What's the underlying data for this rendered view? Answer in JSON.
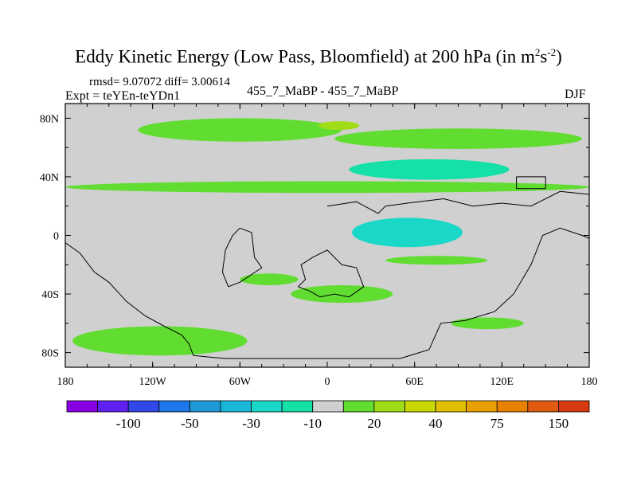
{
  "chart_data": {
    "type": "heatmap",
    "title_prefix": "Eddy Kinetic Energy (Low Pass, Bloomfield) at 200 hPa (in m",
    "title_unit_exp1": "2",
    "title_unit_mid": "s",
    "title_unit_exp2": "-2",
    "title_suffix": ")",
    "stats_line": "rmsd= 9.07072 diff= 3.00614",
    "expt_line": "Expt = teYEn-teYDn1",
    "center_label": "455_7_MaBP - 455_7_MaBP",
    "season": "DJF",
    "x_range": [
      -180,
      180
    ],
    "y_range": [
      -90,
      90
    ],
    "x_ticks": [
      {
        "value": -180,
        "label": "180"
      },
      {
        "value": -120,
        "label": "120W"
      },
      {
        "value": -60,
        "label": "60W"
      },
      {
        "value": 0,
        "label": "0"
      },
      {
        "value": 60,
        "label": "60E"
      },
      {
        "value": 120,
        "label": "120E"
      },
      {
        "value": 180,
        "label": "180"
      }
    ],
    "y_ticks": [
      {
        "value": 80,
        "label": "80N"
      },
      {
        "value": 40,
        "label": "40N"
      },
      {
        "value": 0,
        "label": "0"
      },
      {
        "value": -40,
        "label": "40S"
      },
      {
        "value": -80,
        "label": "80S"
      }
    ],
    "colorbar": {
      "colors": [
        "#8a00e6",
        "#6020f0",
        "#2f48e6",
        "#1e78ec",
        "#1e9ad6",
        "#1ab8d8",
        "#19d8c8",
        "#14e0a8",
        "#d0d0d0",
        "#60dd30",
        "#a0dc18",
        "#c8d800",
        "#e0c000",
        "#e8a000",
        "#e88000",
        "#e05a10",
        "#d83a10"
      ],
      "labels": [
        {
          "boundary": 1,
          "text": "-100"
        },
        {
          "boundary": 3,
          "text": "-50"
        },
        {
          "boundary": 5,
          "text": "-30"
        },
        {
          "boundary": 7,
          "text": "-10"
        },
        {
          "boundary": 9,
          "text": "20"
        },
        {
          "boundary": 11,
          "text": "40"
        },
        {
          "boundary": 13,
          "text": "75"
        },
        {
          "boundary": 15,
          "text": "150"
        }
      ]
    },
    "regions": [
      {
        "level": "20",
        "color": "#60dd30",
        "lon_center": -60,
        "lat_center": 72,
        "lon_halfwidth": 70,
        "lat_halfwidth": 8
      },
      {
        "level": "20",
        "color": "#60dd30",
        "lon_center": 90,
        "lat_center": 66,
        "lon_halfwidth": 85,
        "lat_halfwidth": 7
      },
      {
        "level": "40",
        "color": "#a0dc18",
        "lon_center": 8,
        "lat_center": 75,
        "lon_halfwidth": 14,
        "lat_halfwidth": 3
      },
      {
        "level": "20",
        "color": "#60dd30",
        "lon_center": 0,
        "lat_center": 33,
        "lon_halfwidth": 180,
        "lat_halfwidth": 4
      },
      {
        "level": "-10",
        "color": "#14e0a8",
        "lon_center": 70,
        "lat_center": 45,
        "lon_halfwidth": 55,
        "lat_halfwidth": 7
      },
      {
        "level": "-10",
        "color": "#19d8c8",
        "lon_center": 55,
        "lat_center": 2,
        "lon_halfwidth": 38,
        "lat_halfwidth": 10
      },
      {
        "level": "20",
        "color": "#60dd30",
        "lon_center": 75,
        "lat_center": -17,
        "lon_halfwidth": 35,
        "lat_halfwidth": 3
      },
      {
        "level": "20",
        "color": "#60dd30",
        "lon_center": -40,
        "lat_center": -30,
        "lon_halfwidth": 20,
        "lat_halfwidth": 4
      },
      {
        "level": "20",
        "color": "#60dd30",
        "lon_center": 10,
        "lat_center": -40,
        "lon_halfwidth": 35,
        "lat_halfwidth": 6
      },
      {
        "level": "20",
        "color": "#60dd30",
        "lon_center": -115,
        "lat_center": -72,
        "lon_halfwidth": 60,
        "lat_halfwidth": 10
      },
      {
        "level": "20",
        "color": "#60dd30",
        "lon_center": 110,
        "lat_center": -60,
        "lon_halfwidth": 25,
        "lat_halfwidth": 4
      }
    ],
    "coastlines": [
      {
        "name": "americas",
        "points": [
          [
            -180,
            -5
          ],
          [
            -170,
            -12
          ],
          [
            -160,
            -25
          ],
          [
            -150,
            -32
          ],
          [
            -138,
            -45
          ],
          [
            -125,
            -55
          ],
          [
            -112,
            -62
          ],
          [
            -100,
            -68
          ],
          [
            -95,
            -74
          ],
          [
            -92,
            -82
          ],
          [
            -70,
            -84
          ],
          [
            -40,
            -84
          ],
          [
            -10,
            -84
          ],
          [
            20,
            -84
          ],
          [
            50,
            -84
          ],
          [
            70,
            -78
          ],
          [
            78,
            -60
          ],
          [
            95,
            -58
          ],
          [
            115,
            -52
          ],
          [
            128,
            -40
          ],
          [
            140,
            -20
          ],
          [
            148,
            0
          ],
          [
            160,
            5
          ],
          [
            175,
            0
          ],
          [
            180,
            -2
          ]
        ]
      },
      {
        "name": "africa",
        "points": [
          [
            -20,
            -35
          ],
          [
            -15,
            -30
          ],
          [
            -18,
            -20
          ],
          [
            -10,
            -15
          ],
          [
            0,
            -10
          ],
          [
            10,
            -20
          ],
          [
            20,
            -22
          ],
          [
            25,
            -35
          ],
          [
            15,
            -42
          ],
          [
            5,
            -40
          ],
          [
            -5,
            -42
          ],
          [
            -12,
            -38
          ],
          [
            -20,
            -35
          ]
        ]
      },
      {
        "name": "southamerica",
        "points": [
          [
            -60,
            5
          ],
          [
            -52,
            2
          ],
          [
            -50,
            -15
          ],
          [
            -45,
            -22
          ],
          [
            -60,
            -32
          ],
          [
            -68,
            -35
          ],
          [
            -72,
            -25
          ],
          [
            -70,
            -10
          ],
          [
            -65,
            0
          ],
          [
            -60,
            5
          ]
        ]
      },
      {
        "name": "asia",
        "points": [
          [
            0,
            20
          ],
          [
            20,
            23
          ],
          [
            35,
            15
          ],
          [
            40,
            20
          ],
          [
            55,
            22
          ],
          [
            80,
            25
          ],
          [
            100,
            20
          ],
          [
            120,
            22
          ],
          [
            140,
            20
          ],
          [
            160,
            30
          ],
          [
            180,
            28
          ]
        ]
      },
      {
        "name": "patch",
        "points": [
          [
            130,
            40
          ],
          [
            150,
            40
          ],
          [
            150,
            32
          ],
          [
            130,
            32
          ],
          [
            130,
            40
          ]
        ]
      }
    ]
  }
}
